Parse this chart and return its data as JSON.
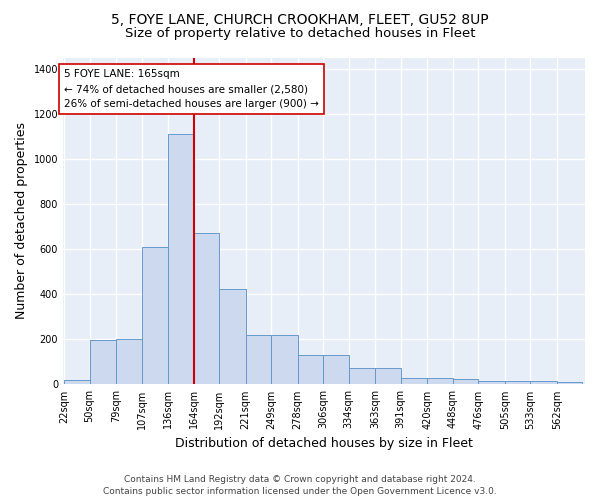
{
  "title1": "5, FOYE LANE, CHURCH CROOKHAM, FLEET, GU52 8UP",
  "title2": "Size of property relative to detached houses in Fleet",
  "xlabel": "Distribution of detached houses by size in Fleet",
  "ylabel": "Number of detached properties",
  "bar_color": "#ccd9ee",
  "bar_edge_color": "#6699cc",
  "background_color": "#e8eef8",
  "grid_color": "#ffffff",
  "vline_color": "#cc0000",
  "vline_x": 165,
  "annotation_text": "5 FOYE LANE: 165sqm\n← 74% of detached houses are smaller (2,580)\n26% of semi-detached houses are larger (900) →",
  "annotation_box_color": "#ffffff",
  "annotation_box_edge": "#cc0000",
  "footer": "Contains HM Land Registry data © Crown copyright and database right 2024.\nContains public sector information licensed under the Open Government Licence v3.0.",
  "bins": [
    22,
    50,
    79,
    107,
    136,
    164,
    192,
    221,
    249,
    278,
    306,
    334,
    363,
    391,
    420,
    448,
    476,
    505,
    533,
    562,
    590
  ],
  "counts": [
    18,
    195,
    200,
    610,
    1110,
    670,
    425,
    218,
    218,
    130,
    130,
    72,
    72,
    30,
    28,
    25,
    15,
    13,
    13,
    10
  ],
  "ylim": [
    0,
    1450
  ],
  "yticks": [
    0,
    200,
    400,
    600,
    800,
    1000,
    1200,
    1400
  ],
  "title1_fontsize": 10,
  "title2_fontsize": 9.5,
  "axis_label_fontsize": 9,
  "tick_fontsize": 7,
  "footer_fontsize": 6.5,
  "annot_fontsize": 7.5
}
